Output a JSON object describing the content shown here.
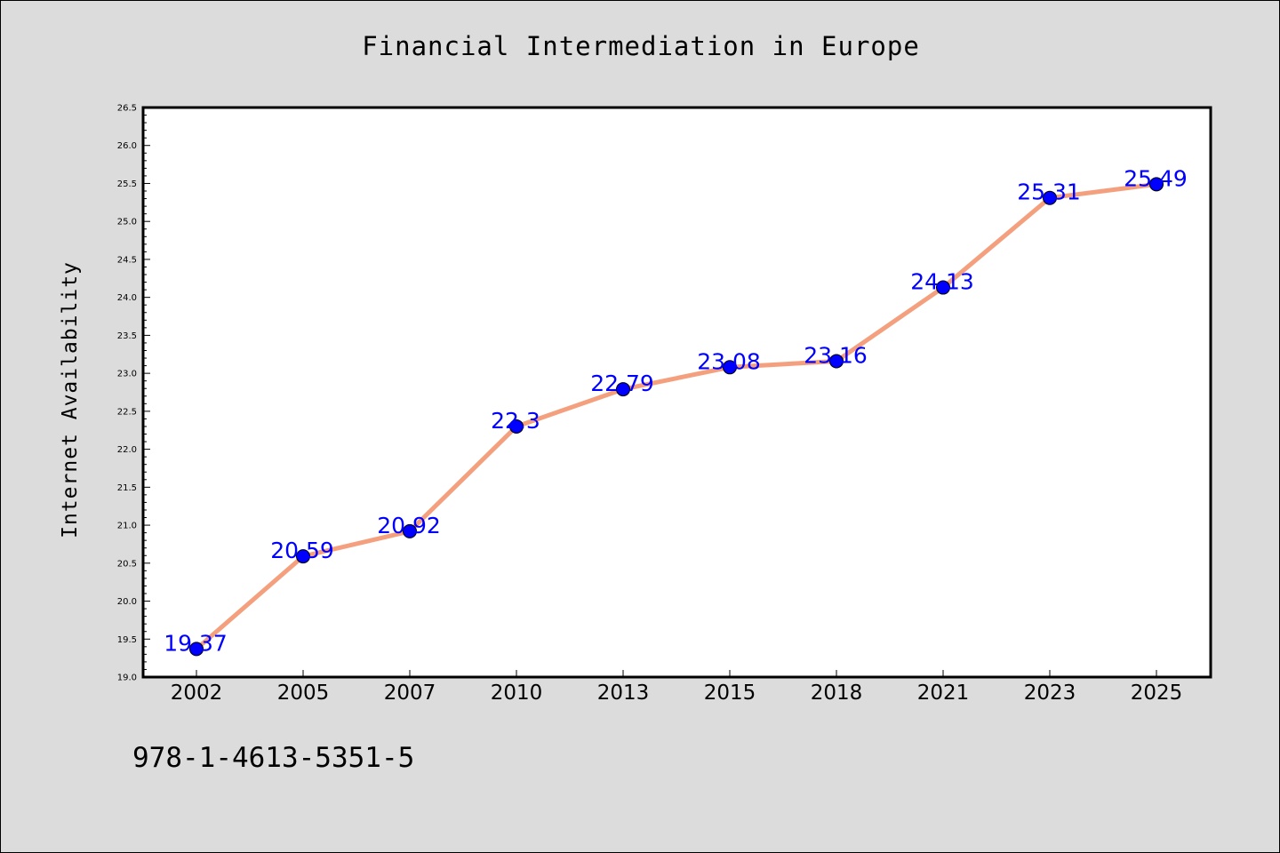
{
  "chart_data": {
    "type": "line",
    "title": "Financial Intermediation in Europe",
    "xlabel": "",
    "ylabel": "Internet Availability",
    "categories": [
      "2002",
      "2005",
      "2007",
      "2010",
      "2013",
      "2015",
      "2018",
      "2021",
      "2023",
      "2025"
    ],
    "values": [
      19.37,
      20.59,
      20.92,
      22.3,
      22.79,
      23.08,
      23.16,
      24.13,
      25.31,
      25.49
    ],
    "data_labels": [
      "19.37",
      "20.59",
      "20.92",
      "22.3",
      "22.79",
      "23.08",
      "23.16",
      "24.13",
      "25.31",
      "25.49"
    ],
    "ylim": [
      19.0,
      26.5
    ],
    "yticks": [
      "19.0",
      "19.5",
      "20.0",
      "20.5",
      "21.0",
      "21.5",
      "22.0",
      "22.5",
      "23.0",
      "23.5",
      "24.0",
      "24.5",
      "25.0",
      "25.5",
      "26.0",
      "26.5"
    ],
    "grid": false,
    "line_color": "#f4a07e",
    "marker_color": "#0000ff",
    "label_color": "#0000ff"
  },
  "footer": {
    "isbn": "978-1-4613-5351-5"
  }
}
